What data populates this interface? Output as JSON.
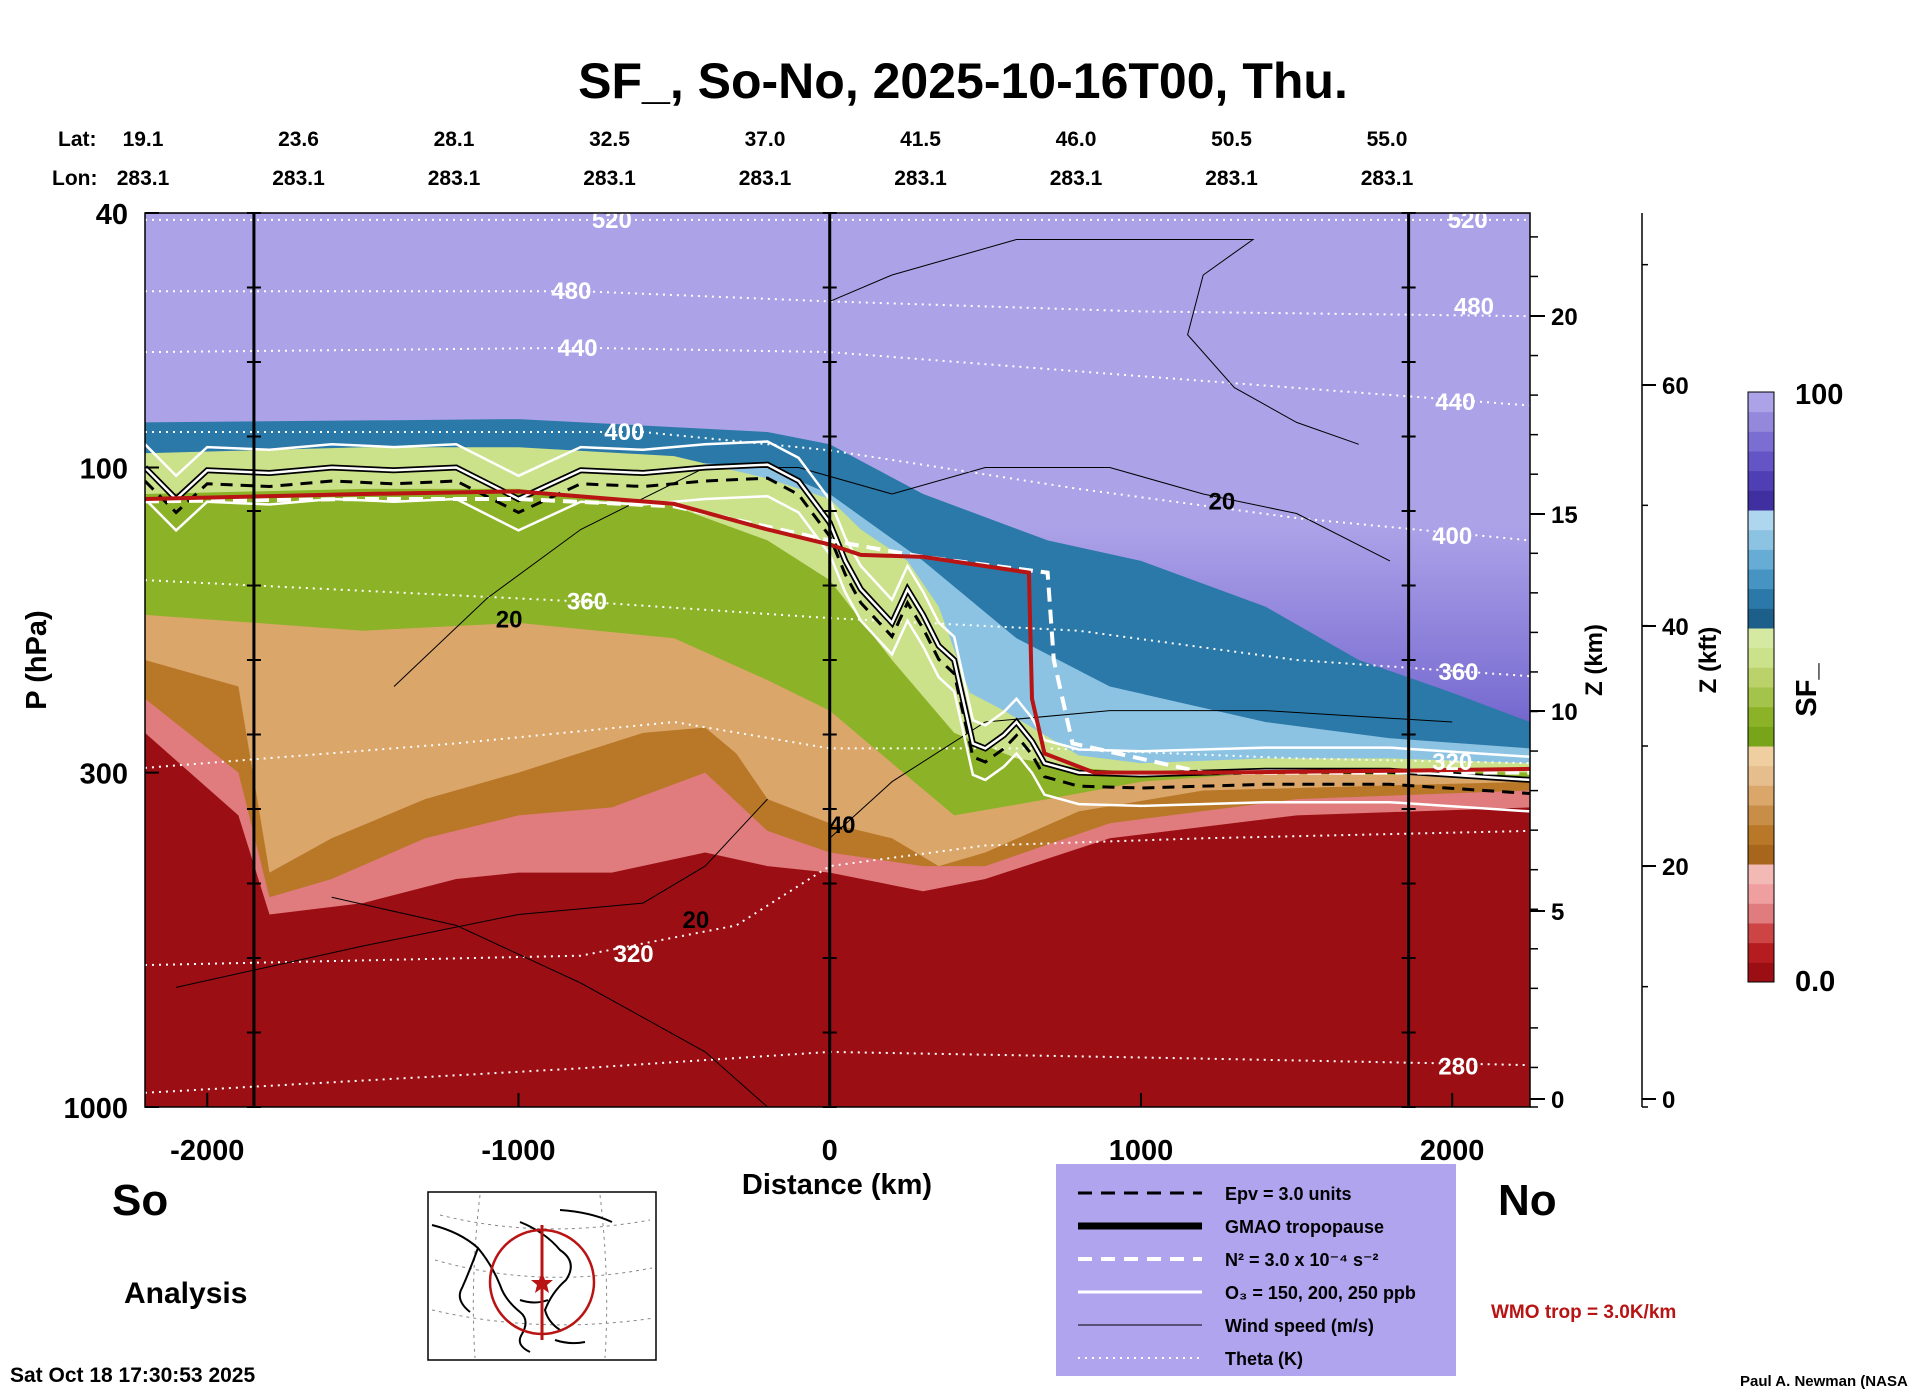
{
  "chart_data": {
    "type": "heatmap",
    "title": "SF_, So-No, 2025-10-16T00, Thu.",
    "xlabel": "Distance (km)",
    "ylabel": "P (hPa)",
    "y2label": "Z (km)",
    "y3label": "Z (kft)",
    "xlim": [
      -2200,
      2250
    ],
    "ylim_hpa": [
      1000,
      40
    ],
    "x_ticks": [
      "-2000",
      "-1000",
      "0",
      "1000",
      "2000"
    ],
    "x_tick_values": [
      -2000,
      -1000,
      0,
      1000,
      2000
    ],
    "y_ticks": [
      "40",
      "100",
      "300",
      "1000"
    ],
    "y_tick_values": [
      40,
      100,
      300,
      1000
    ],
    "z_km_ticks": [
      "0",
      "5",
      "10",
      "15",
      "20"
    ],
    "z_kft_ticks": [
      "0",
      "20",
      "40",
      "60"
    ],
    "lat_label": "Lat:",
    "lon_label": "Lon:",
    "lat": [
      "19.1",
      "23.6",
      "28.1",
      "32.5",
      "37.0",
      "41.5",
      "46.0",
      "50.5",
      "55.0"
    ],
    "lon": [
      "283.1",
      "283.1",
      "283.1",
      "283.1",
      "283.1",
      "283.1",
      "283.1",
      "283.1",
      "283.1"
    ],
    "lat_lon_x": [
      -2200,
      -1700,
      -1200,
      -700,
      -200,
      300,
      800,
      1300,
      1800
    ],
    "colorbar": {
      "label": "SF_",
      "min": "0.0",
      "max": "100"
    },
    "theta_labels": [
      {
        "text": "520",
        "x": -700,
        "p": 41
      },
      {
        "text": "520",
        "x": 2050,
        "p": 41
      },
      {
        "text": "480",
        "x": -830,
        "p": 53
      },
      {
        "text": "480",
        "x": 2070,
        "p": 56
      },
      {
        "text": "440",
        "x": -810,
        "p": 65
      },
      {
        "text": "440",
        "x": 2010,
        "p": 79
      },
      {
        "text": "400",
        "x": -660,
        "p": 88
      },
      {
        "text": "400",
        "x": 2000,
        "p": 128
      },
      {
        "text": "360",
        "x": -780,
        "p": 162
      },
      {
        "text": "360",
        "x": 2020,
        "p": 209
      },
      {
        "text": "320",
        "x": 2000,
        "p": 289
      },
      {
        "text": "320",
        "x": -630,
        "p": 576
      },
      {
        "text": "280",
        "x": 2020,
        "p": 864
      }
    ],
    "wind_labels": [
      {
        "text": "20",
        "x": 1260,
        "p": 113
      },
      {
        "text": "20",
        "x": -1030,
        "p": 173
      },
      {
        "text": "20",
        "x": -430,
        "p": 510
      },
      {
        "text": "40",
        "x": 40,
        "p": 362
      }
    ],
    "lines": {
      "wmo_tropopause": {
        "x": [
          -2200,
          -1500,
          -1000,
          -500,
          -200,
          0,
          100,
          300,
          640,
          650,
          690,
          850,
          1200,
          1800,
          2250
        ],
        "p": [
          112,
          110,
          109,
          114,
          125,
          132,
          137,
          138,
          146,
          230,
          280,
          300,
          300,
          298,
          296
        ]
      },
      "gmao_tropopause": {
        "x": [
          -2200,
          -2100,
          -2000,
          -1800,
          -1600,
          -1400,
          -1200,
          -1000,
          -800,
          -600,
          -400,
          -200,
          -100,
          0,
          50,
          100,
          200,
          250,
          300,
          350,
          400,
          460,
          500,
          560,
          600,
          650,
          690,
          800,
          1000,
          1400,
          1800,
          2250
        ],
        "p": [
          100,
          112,
          101,
          102,
          100,
          101,
          100,
          112,
          101,
          102,
          100,
          99,
          105,
          122,
          140,
          155,
          175,
          155,
          170,
          190,
          200,
          270,
          275,
          262,
          250,
          268,
          290,
          300,
          302,
          298,
          298,
          308
        ]
      }
    },
    "background_regions": [
      "lower-troposphere 0-low SF",
      "stratosphere high SF"
    ]
  },
  "annotations": {
    "south": "So",
    "north": "No",
    "analysis": "Analysis",
    "timestamp": "Sat Oct 18 17:30:53 2025",
    "credit": "Paul A. Newman (NASA",
    "wmo_trop": "WMO trop = 3.0K/km"
  },
  "legend": {
    "items": [
      {
        "label": "Epv = 3.0 units",
        "style": "dashed-black"
      },
      {
        "label": "GMAO tropopause",
        "style": "thick-black"
      },
      {
        "label": "N² = 3.0 x 10⁻⁴ s⁻²",
        "style": "dashed-white"
      },
      {
        "label": "O₃ = 150, 200, 250 ppb",
        "style": "solid-white"
      },
      {
        "label": "Wind speed (m/s)",
        "style": "thin-black"
      },
      {
        "label": "Theta (K)",
        "style": "dotted-white"
      }
    ]
  },
  "colors": {
    "legend_bg": "#b0a4ee",
    "wmo": "#b81414",
    "colorbar": [
      "#9b0f14",
      "#b51c20",
      "#cc4444",
      "#e07b7e",
      "#ef9fa0",
      "#f2b9b5",
      "#a8651c",
      "#b87828",
      "#c88e48",
      "#dba66a",
      "#e6bd8d",
      "#efcf9f",
      "#78a419",
      "#8cb227",
      "#a4c34a",
      "#bbd26a",
      "#cbe18a",
      "#d6e9a3",
      "#1c5f8a",
      "#2b79a8",
      "#4694c2",
      "#67acd5",
      "#8cc3e3",
      "#aed6ee",
      "#3f2fa1",
      "#4f3fb4",
      "#6455c6",
      "#7a6ed2",
      "#9488dc",
      "#aca2e8"
    ]
  }
}
